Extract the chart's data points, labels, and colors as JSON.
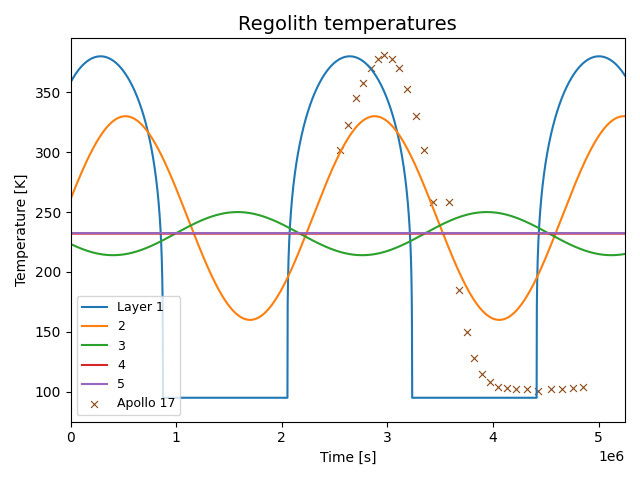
{
  "title": "Regolith temperatures",
  "xlabel": "Time [s]",
  "ylabel": "Temperature [K]",
  "xlim": [
    0,
    5250000.0
  ],
  "ylim": [
    75,
    395
  ],
  "legend_labels": [
    "Layer 1",
    "2",
    "3",
    "4",
    "5",
    "Apollo 17"
  ],
  "legend_loc": "lower left",
  "layer1_color": "#1f77b4",
  "layer2_color": "#ff7f0e",
  "layer3_color": "#2ca02c",
  "layer4_color": "#d62728",
  "layer5_color": "#9467bd",
  "apollo_color": "#8B4513",
  "period": 2360000.0,
  "t_day_start_1": 0.0,
  "t_day_peak_1": 300000.0,
  "t_night_start_1": 1100000.0,
  "t_night_end_1": 2180000.0,
  "t_day_peak_2": 2930000.0,
  "t_night_start_2": 3480000.0,
  "t_night_end_2": 4840000.0,
  "T_surf_max": 380.0,
  "T_surf_min": 95.0,
  "T_layer2_max": 330.0,
  "T_layer2_min": 160.0,
  "T_mean": 232.0,
  "T_layer3_amp": 18.0,
  "T_layer4": 232.0,
  "T_layer5": 232.5,
  "apollo_hot_t": [
    2550000.0,
    2630000.0,
    2700000.0,
    2770000.0,
    2840000.0,
    2910000.0,
    2970000.0,
    3040000.0,
    3110000.0,
    3190000.0,
    3270000.0,
    3350000.0,
    3430000.0
  ],
  "apollo_hot_T": [
    302,
    323,
    345,
    358,
    370,
    378,
    381,
    378,
    370,
    353,
    330,
    302,
    258
  ],
  "apollo_cold_t": [
    3580000.0,
    3680000.0,
    3750000.0,
    3820000.0,
    3900000.0,
    3970000.0,
    4050000.0,
    4130000.0,
    4220000.0,
    4320000.0,
    4430000.0,
    4550000.0,
    4650000.0,
    4760000.0,
    4850000.0
  ],
  "apollo_cold_T": [
    258,
    185,
    150,
    128,
    115,
    108,
    104,
    103,
    102,
    102,
    101,
    102,
    102,
    103,
    104
  ]
}
